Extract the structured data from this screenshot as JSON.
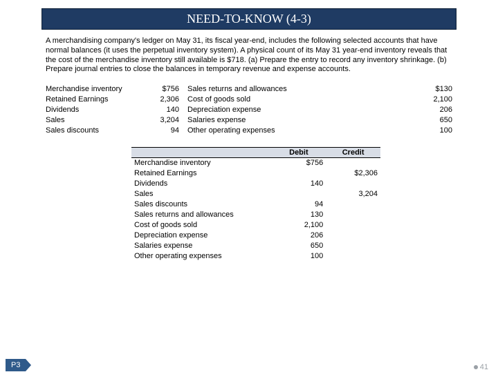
{
  "header": {
    "title": "NEED-TO-KNOW (4-3)"
  },
  "paragraph": "A merchandising company's ledger on May 31, its fiscal year-end, includes the following selected accounts that have normal balances (it uses the perpetual inventory system). A physical count of its May 31 year-end inventory reveals that the cost of the merchandise inventory still available is $718. (a) Prepare the entry to record any inventory shrinkage. (b) Prepare journal entries to close the balances in temporary revenue and expense accounts.",
  "ledger": {
    "left": [
      {
        "label": "Merchandise inventory",
        "value": "$756"
      },
      {
        "label": "Retained Earnings",
        "value": "2,306"
      },
      {
        "label": "Dividends",
        "value": "140"
      },
      {
        "label": "Sales",
        "value": "3,204"
      },
      {
        "label": "Sales discounts",
        "value": "94"
      }
    ],
    "right": [
      {
        "label": "Sales returns and allowances",
        "value": "$130"
      },
      {
        "label": "Cost of goods sold",
        "value": "2,100"
      },
      {
        "label": "Depreciation expense",
        "value": "206"
      },
      {
        "label": "Salaries expense",
        "value": "650"
      },
      {
        "label": "Other operating expenses",
        "value": "100"
      }
    ]
  },
  "journal": {
    "headers": {
      "debit": "Debit",
      "credit": "Credit"
    },
    "rows": [
      {
        "name": "Merchandise inventory",
        "debit": "$756",
        "credit": ""
      },
      {
        "name": "Retained Earnings",
        "debit": "",
        "credit": "$2,306"
      },
      {
        "name": "Dividends",
        "debit": "140",
        "credit": ""
      },
      {
        "name": "Sales",
        "debit": "",
        "credit": "3,204"
      },
      {
        "name": "Sales discounts",
        "debit": "94",
        "credit": ""
      },
      {
        "name": "Sales returns and allowances",
        "debit": "130",
        "credit": ""
      },
      {
        "name": "Cost of goods sold",
        "debit": "2,100",
        "credit": ""
      },
      {
        "name": "Depreciation expense",
        "debit": "206",
        "credit": ""
      },
      {
        "name": "Salaries expense",
        "debit": "650",
        "credit": ""
      },
      {
        "name": "Other operating expenses",
        "debit": "100",
        "credit": ""
      }
    ]
  },
  "footer": {
    "tag": "P3",
    "page": "41"
  },
  "colors": {
    "header_bg": "#1f3b63",
    "journal_header_bg": "#d8dde6",
    "tag_bg": "#2f5a8a",
    "page_text": "#9aa0a6"
  }
}
